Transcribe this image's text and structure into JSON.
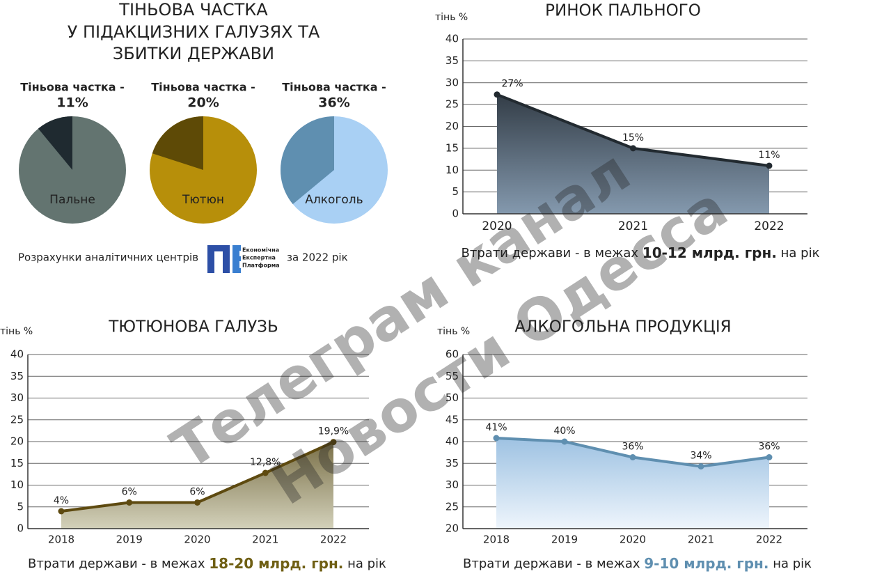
{
  "title_lines": [
    "ТІНЬОВА ЧАСТКА",
    "У ПІДАКЦИЗНИХ ГАЛУЗЯХ ТА",
    "ЗБИТКИ ДЕРЖАВИ"
  ],
  "source": "Розрахунки аналітичних центрів",
  "source_org": [
    "Економічна",
    "Експертна",
    "Платформа"
  ],
  "source_year": "за 2022 рік",
  "watermark": [
    "Телеграм канал",
    "Новости Одесса"
  ],
  "chart_data": [
    {
      "type": "pie",
      "title": "Тіньова частка -",
      "category": "Пальне",
      "values": [
        11
      ],
      "value_labels": [
        "11%"
      ],
      "total": 100,
      "color": "#1f2a30",
      "rest_color": "#637470",
      "title_color": "#222222"
    },
    {
      "type": "pie",
      "title": "Тіньова частка -",
      "category": "Тютюн",
      "values": [
        20
      ],
      "value_labels": [
        "20%"
      ],
      "total": 100,
      "color": "#5e4a06",
      "rest_color": "#b78f0a",
      "title_color": "#6f5f14"
    },
    {
      "type": "pie",
      "title": "Тіньова частка -",
      "category": "Алкоголь",
      "values": [
        36
      ],
      "value_labels": [
        "36%"
      ],
      "total": 100,
      "color": "#5f8fb0",
      "rest_color": "#a9d0f4",
      "title_color": "#6c9ab8"
    },
    {
      "type": "area",
      "title": "РИНОК ПАЛЬНОГО",
      "ylabel": "тінь %",
      "categories": [
        "2020",
        "2021",
        "2022"
      ],
      "values": [
        27.3,
        15,
        11
      ],
      "value_labels": [
        "27%",
        "15%",
        "11%"
      ],
      "ylim": [
        0,
        40
      ],
      "yticks": [
        0,
        5,
        10,
        15,
        20,
        25,
        30,
        35,
        40
      ],
      "grid": true,
      "color": "#222a30",
      "fill": "gFuel",
      "footnote": [
        "Втрати держави - в межах ",
        "10-12 млрд. грн.",
        " на рік"
      ],
      "footnote_color": "#222222"
    },
    {
      "type": "area",
      "title": "ТЮТЮНОВА ГАЛУЗЬ",
      "ylabel": "тінь %",
      "categories": [
        "2018",
        "2019",
        "2020",
        "2021",
        "2022"
      ],
      "values": [
        4,
        6,
        6,
        12.8,
        19.9
      ],
      "value_labels": [
        "4%",
        "6%",
        "6%",
        "12,8%",
        "19,9%"
      ],
      "ylim": [
        0,
        40
      ],
      "yticks": [
        0,
        5,
        10,
        15,
        20,
        25,
        30,
        35,
        40
      ],
      "grid": true,
      "color": "#5e4a10",
      "fill": "gTob",
      "footnote": [
        "Втрати держави - в межах ",
        "18-20 млрд. грн.",
        " на рік"
      ],
      "footnote_color": "#6f5f14"
    },
    {
      "type": "area",
      "title": "АЛКОГОЛЬНА ПРОДУКЦІЯ",
      "ylabel": "тінь %",
      "categories": [
        "2018",
        "2019",
        "2020",
        "2021",
        "2022"
      ],
      "values": [
        40.8,
        40,
        36.4,
        34.3,
        36.4
      ],
      "value_labels": [
        "41%",
        "40%",
        "36%",
        "34%",
        "36%"
      ],
      "ylim": [
        20,
        60
      ],
      "yticks": [
        20,
        25,
        30,
        35,
        40,
        45,
        50,
        55,
        60
      ],
      "grid": true,
      "color": "#5f8fb0",
      "fill": "gAlc",
      "footnote": [
        "Втрати держави - в межах ",
        "9-10 млрд. грн.",
        " на рік"
      ],
      "footnote_color": "#5f8fb0"
    }
  ]
}
